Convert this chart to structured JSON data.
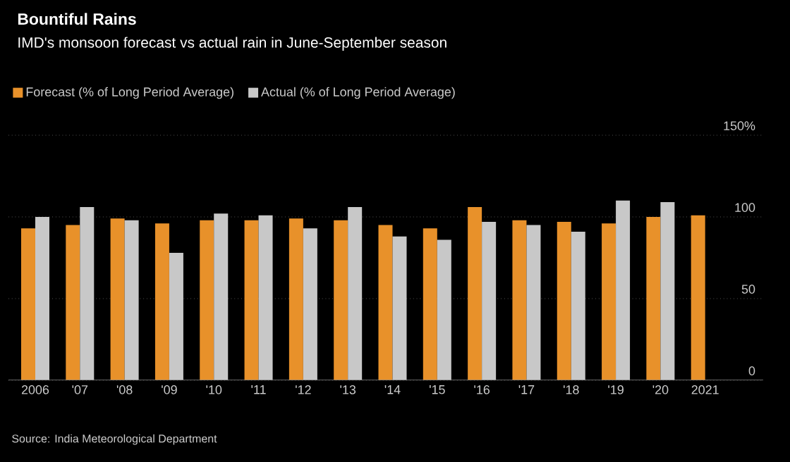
{
  "chart_data": {
    "type": "bar",
    "title": "Bountiful Rains",
    "subtitle": "IMD's monsoon forecast vs actual rain in June-September season",
    "categories": [
      "2006",
      "'07",
      "'08",
      "'09",
      "'10",
      "'11",
      "'12",
      "'13",
      "'14",
      "'15",
      "'16",
      "'17",
      "'18",
      "'19",
      "'20",
      "2021"
    ],
    "series": [
      {
        "name": "Forecast (% of Long Period Average)",
        "color": "#e8912a",
        "values": [
          93,
          95,
          99,
          96,
          98,
          98,
          99,
          98,
          95,
          93,
          106,
          98,
          97,
          96,
          100,
          101
        ]
      },
      {
        "name": "Actual (% of Long Period Average)",
        "color": "#c8c8c8",
        "values": [
          100,
          106,
          98,
          78,
          102,
          101,
          93,
          106,
          88,
          86,
          97,
          95,
          91,
          110,
          109,
          null
        ]
      }
    ],
    "ylim": [
      0,
      150
    ],
    "yticks": [
      0,
      50,
      100,
      {
        "value": 150,
        "label": "150%"
      }
    ],
    "grid": "y",
    "legend": "top left",
    "annotations": [
      "Source: India Meteorological Department"
    ]
  }
}
